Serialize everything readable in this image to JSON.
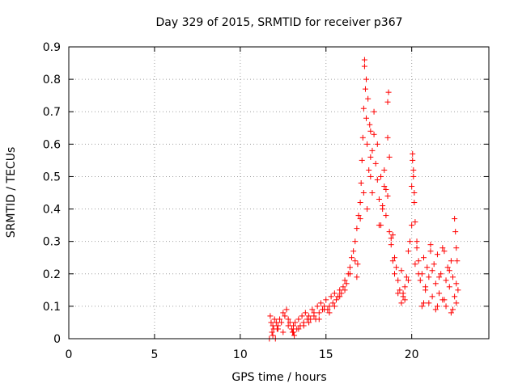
{
  "chart_data": {
    "type": "scatter",
    "title": "Day 329 of 2015, SRMTID for receiver p367",
    "xlabel": "GPS time / hours",
    "ylabel": "SRMTID / TECUs",
    "xlim": [
      0,
      24.5
    ],
    "ylim": [
      0,
      0.9
    ],
    "xticks": [
      0,
      5,
      10,
      15,
      20
    ],
    "xtick_labels": [
      "0",
      "5",
      "10",
      "15",
      "20"
    ],
    "yticks": [
      0,
      0.1,
      0.2,
      0.3,
      0.4,
      0.5,
      0.6,
      0.7,
      0.8,
      0.9
    ],
    "ytick_labels": [
      "0",
      "0.1",
      "0.2",
      "0.3",
      "0.4",
      "0.5",
      "0.6",
      "0.7",
      "0.8",
      "0.9"
    ],
    "grid": true,
    "marker": "+",
    "color": "#ff0000",
    "series": [
      {
        "name": "p367",
        "x": [
          11.7,
          11.75,
          11.8,
          11.85,
          11.9,
          11.95,
          12.0,
          12.05,
          12.1,
          12.15,
          12.2,
          12.3,
          12.4,
          12.5,
          12.6,
          12.7,
          12.8,
          12.9,
          13.0,
          13.05,
          13.1,
          13.15,
          13.2,
          13.3,
          13.4,
          13.5,
          13.6,
          13.7,
          13.8,
          13.9,
          14.0,
          14.1,
          14.2,
          14.3,
          14.4,
          14.5,
          14.6,
          14.7,
          14.8,
          14.9,
          15.0,
          15.1,
          15.2,
          15.3,
          15.4,
          15.5,
          15.6,
          15.7,
          15.8,
          15.9,
          16.0,
          16.1,
          16.2,
          16.3,
          16.4,
          16.5,
          16.6,
          16.7,
          16.8,
          16.9,
          17.0,
          17.05,
          17.1,
          17.15,
          17.2,
          17.25,
          17.3,
          17.35,
          17.4,
          17.5,
          17.6,
          17.7,
          17.8,
          17.9,
          18.0,
          18.1,
          18.2,
          18.3,
          18.4,
          18.5,
          18.6,
          18.7,
          18.8,
          18.9,
          19.0,
          19.1,
          19.2,
          19.3,
          19.4,
          19.5,
          19.6,
          19.7,
          19.8,
          19.9,
          20.0,
          20.05,
          20.1,
          20.15,
          20.2,
          20.3,
          20.4,
          20.5,
          20.6,
          20.7,
          20.8,
          20.9,
          21.0,
          21.1,
          21.2,
          21.3,
          21.4,
          21.5,
          21.6,
          21.7,
          21.8,
          21.9,
          22.0,
          22.1,
          22.2,
          22.3,
          22.4,
          22.5,
          22.6,
          22.7,
          11.9,
          12.2,
          12.5,
          12.8,
          13.1,
          13.4,
          13.7,
          14.0,
          14.3,
          14.6,
          14.9,
          15.2,
          15.5,
          15.8,
          16.1,
          16.4,
          16.7,
          17.0,
          17.2,
          17.4,
          17.6,
          17.8,
          18.0,
          18.2,
          18.4,
          18.6,
          18.8,
          19.0,
          19.2,
          19.4,
          19.6,
          19.8,
          20.0,
          20.2,
          20.4,
          20.6,
          20.8,
          21.0,
          21.2,
          21.4,
          21.6,
          21.8,
          22.0,
          22.2,
          22.4,
          22.6,
          17.25,
          17.35,
          17.45,
          17.55,
          18.6,
          18.65,
          18.7,
          20.05,
          20.1,
          20.15,
          22.5,
          22.55,
          22.6,
          22.65,
          16.8,
          16.85,
          17.6,
          17.7,
          18.1,
          18.3,
          18.5,
          18.9,
          19.5,
          20.3,
          20.7,
          21.1,
          21.5,
          21.9,
          22.3
        ],
        "y": [
          0.0,
          0.07,
          0.05,
          0.02,
          0.04,
          0.03,
          0.06,
          0.0,
          0.05,
          0.03,
          0.04,
          0.06,
          0.05,
          0.08,
          0.07,
          0.09,
          0.04,
          0.05,
          0.03,
          0.02,
          0.04,
          0.01,
          0.05,
          0.03,
          0.06,
          0.04,
          0.07,
          0.05,
          0.08,
          0.06,
          0.07,
          0.06,
          0.09,
          0.08,
          0.06,
          0.1,
          0.08,
          0.11,
          0.09,
          0.1,
          0.12,
          0.09,
          0.1,
          0.13,
          0.11,
          0.14,
          0.12,
          0.13,
          0.15,
          0.14,
          0.16,
          0.18,
          0.17,
          0.2,
          0.22,
          0.25,
          0.27,
          0.3,
          0.34,
          0.38,
          0.42,
          0.48,
          0.55,
          0.62,
          0.71,
          0.86,
          0.77,
          0.68,
          0.6,
          0.52,
          0.64,
          0.58,
          0.7,
          0.54,
          0.49,
          0.43,
          0.5,
          0.41,
          0.47,
          0.38,
          0.44,
          0.33,
          0.29,
          0.24,
          0.2,
          0.22,
          0.18,
          0.15,
          0.21,
          0.13,
          0.16,
          0.19,
          0.27,
          0.3,
          0.47,
          0.55,
          0.5,
          0.42,
          0.36,
          0.28,
          0.24,
          0.18,
          0.2,
          0.25,
          0.15,
          0.22,
          0.19,
          0.27,
          0.13,
          0.23,
          0.17,
          0.26,
          0.14,
          0.2,
          0.28,
          0.12,
          0.18,
          0.22,
          0.16,
          0.24,
          0.19,
          0.13,
          0.17,
          0.15,
          0.01,
          0.03,
          0.02,
          0.06,
          0.02,
          0.03,
          0.04,
          0.05,
          0.07,
          0.06,
          0.09,
          0.08,
          0.1,
          0.13,
          0.15,
          0.2,
          0.24,
          0.37,
          0.45,
          0.4,
          0.56,
          0.63,
          0.6,
          0.35,
          0.52,
          0.62,
          0.31,
          0.25,
          0.14,
          0.11,
          0.12,
          0.18,
          0.35,
          0.23,
          0.2,
          0.1,
          0.16,
          0.11,
          0.21,
          0.09,
          0.19,
          0.12,
          0.1,
          0.21,
          0.09,
          0.11,
          0.84,
          0.8,
          0.74,
          0.66,
          0.73,
          0.76,
          0.56,
          0.57,
          0.52,
          0.45,
          0.37,
          0.33,
          0.28,
          0.24,
          0.19,
          0.23,
          0.5,
          0.45,
          0.35,
          0.4,
          0.46,
          0.32,
          0.14,
          0.3,
          0.11,
          0.29,
          0.1,
          0.27,
          0.08
        ]
      }
    ]
  }
}
